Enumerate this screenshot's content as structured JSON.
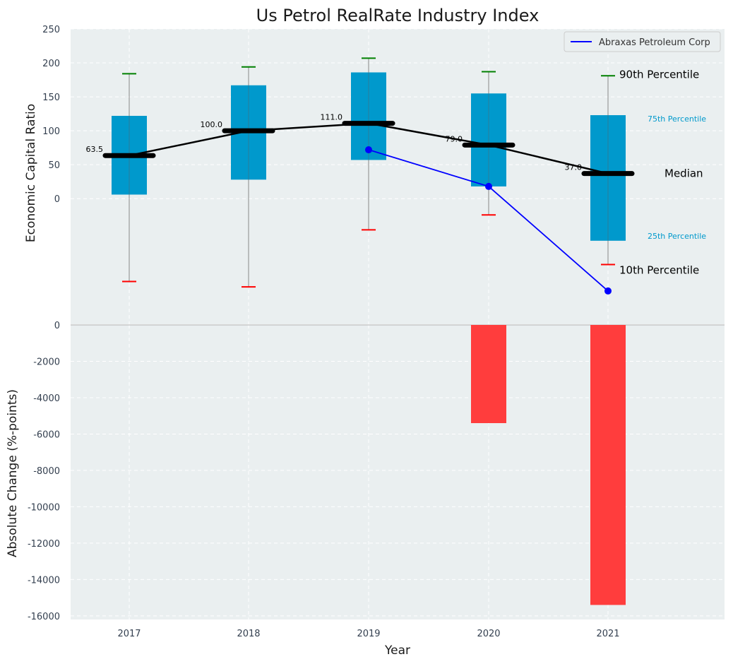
{
  "chart_data": [
    {
      "type": "box",
      "title": "Us Petrol RealRate Industry Index",
      "ylabel": "Economic Capital Ratio",
      "ylim": [
        -185,
        250
      ],
      "yticks": [
        0,
        50,
        100,
        150,
        200,
        250
      ],
      "categories": [
        "2017",
        "2018",
        "2019",
        "2020",
        "2021"
      ],
      "p90": [
        184,
        194,
        207,
        187,
        181
      ],
      "p75": [
        122,
        167,
        186,
        155,
        123
      ],
      "median": [
        63.5,
        100.0,
        111.0,
        79.0,
        37.0
      ],
      "median_labels": [
        "63.5",
        "100.0",
        "111.0",
        "79.0",
        "37.0"
      ],
      "p25": [
        6,
        28,
        57,
        18,
        -62
      ],
      "p10": [
        -122,
        -130,
        -46,
        -24,
        -97
      ],
      "company": {
        "name": "Abraxas Petroleum Corp",
        "x": [
          "2019",
          "2020",
          "2021"
        ],
        "values": [
          72,
          18,
          -136
        ]
      },
      "percentile_labels": {
        "p90": "90th Percentile",
        "p75": "75th Percentile",
        "median": "Median",
        "p25": "25th Percentile",
        "p10": "10th Percentile"
      },
      "legend": [
        "Abraxas Petroleum Corp"
      ],
      "legend_position": "top-right",
      "colors": {
        "box": "#0099cc",
        "median": "#000000",
        "company": "#0000ff",
        "p90_cap": "#008000",
        "p10_cap": "#ff0000",
        "background": "#eaeff0"
      }
    },
    {
      "type": "bar",
      "ylabel": "Absolute Change (%-points)",
      "xlabel": "Year",
      "ylim": [
        -16200,
        0
      ],
      "yticks": [
        0,
        -2000,
        -4000,
        -6000,
        -8000,
        -10000,
        -12000,
        -14000,
        -16000
      ],
      "categories": [
        "2017",
        "2018",
        "2019",
        "2020",
        "2021"
      ],
      "values": [
        0,
        0,
        0,
        -5400,
        -15400
      ],
      "colors": {
        "bar": "#ff3d3d"
      }
    }
  ]
}
